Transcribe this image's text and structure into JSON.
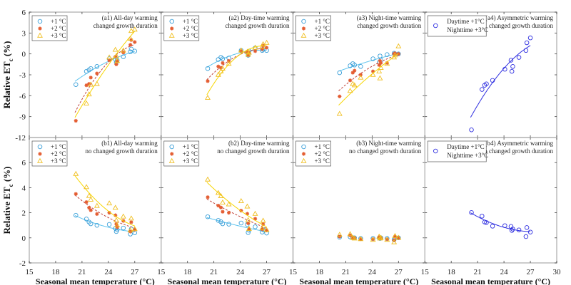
{
  "chart_data": {
    "type": "scatter",
    "x_label": "Seasonal mean temperature (°C)",
    "y_label": "Relative ET",
    "y_label_sub": "c",
    "y_label_unit": " (%)",
    "x_range": [
      15,
      30
    ],
    "x_ticks": [
      15,
      18,
      21,
      24,
      27,
      30
    ],
    "rows": [
      {
        "y_range": [
          -12,
          6
        ],
        "y_ticks": [
          -12,
          -9,
          -6,
          -3,
          0,
          3,
          6
        ]
      },
      {
        "y_range": [
          -2,
          8
        ],
        "y_ticks": [
          -2,
          0,
          2,
          4,
          6
        ]
      }
    ],
    "colors": {
      "plus1": "#3b9fd8",
      "plus1_line": "#5cc3ee",
      "plus2": "#e45d32",
      "plus2_line": "#c0443c",
      "plus3": "#f0be1e",
      "plus3_line": "#f7d600",
      "asym": "#2f2fe0"
    },
    "x": [
      20.3,
      21.5,
      21.8,
      22.0,
      22.7,
      24.1,
      24.8,
      24.9,
      25.0,
      25.7,
      26.5,
      26.6,
      27.0
    ],
    "panels": [
      {
        "id": "a1",
        "row": 0,
        "title1": "(a1) All-day warming",
        "title2": "changed growth duration",
        "fit": true,
        "series": [
          {
            "name": "+1 °C",
            "marker": "circle",
            "y": [
              -4.4,
              -2.5,
              -2.3,
              -2.1,
              -1.8,
              -0.7,
              -0.8,
              -1.2,
              -0.9,
              -0.4,
              0.3,
              0.7,
              0.4
            ]
          },
          {
            "name": "+2 °C",
            "marker": "star",
            "y": [
              -9.6,
              -4.5,
              -4.3,
              -3.4,
              -2.8,
              -0.9,
              -0.4,
              -1.5,
              -1.0,
              0.2,
              1.3,
              2.0,
              1.7
            ]
          },
          {
            "name": "+3 °C",
            "marker": "triangle",
            "y": [
              null,
              -7.1,
              -5.8,
              -4.4,
              -4.3,
              -0.5,
              0.6,
              -0.3,
              -1.0,
              0.5,
              2.2,
              3.3,
              3.5
            ]
          }
        ]
      },
      {
        "id": "a2",
        "row": 0,
        "title1": "(a2) Day-time warming",
        "title2": "changed growth duration",
        "fit": true,
        "series": [
          {
            "name": "+1 °C",
            "marker": "circle",
            "y": [
              -2.1,
              -0.8,
              -0.5,
              -0.7,
              -0.6,
              0.5,
              0.2,
              -0.2,
              0.4,
              0.85,
              0.5,
              0.65,
              0.5
            ]
          },
          {
            "name": "+2 °C",
            "marker": "star",
            "y": [
              -3.9,
              -1.8,
              -2.0,
              -1.3,
              -1.0,
              0.4,
              0.3,
              -0.2,
              0.2,
              0.4,
              0.7,
              1.2,
              0.9
            ]
          },
          {
            "name": "+3 °C",
            "marker": "triangle",
            "y": [
              -6.3,
              -3.0,
              -2.5,
              -2.1,
              -1.4,
              0.5,
              0.3,
              -0.1,
              0.2,
              0.9,
              1.0,
              1.4,
              1.6
            ]
          }
        ]
      },
      {
        "id": "a3",
        "row": 0,
        "title1": "(a3) Night-time warming",
        "title2": "changed growth duration",
        "fit": true,
        "series": [
          {
            "name": "+1 °C",
            "marker": "circle",
            "y": [
              -2.7,
              -1.7,
              -1.4,
              -1.6,
              -1.8,
              -0.7,
              -1.2,
              -0.3,
              -0.9,
              -0.1,
              0.1,
              0.0,
              0.0
            ]
          },
          {
            "name": "+2 °C",
            "marker": "star",
            "y": [
              -6.1,
              -3.8,
              -2.7,
              -2.4,
              -3.0,
              -2.5,
              -1.6,
              -1.0,
              -1.3,
              -1.3,
              0.0,
              0.1,
              0.0
            ]
          },
          {
            "name": "+3 °C",
            "marker": "triangle",
            "y": [
              -8.6,
              -5.3,
              -4.3,
              -4.5,
              -3.4,
              -3.0,
              -2.5,
              -3.5,
              -2.0,
              -1.4,
              -0.5,
              -0.2,
              1.1
            ]
          }
        ]
      },
      {
        "id": "a4",
        "row": 0,
        "title1": "(a4) Asymmetric warming",
        "title2": "changed growth duration",
        "fit": true,
        "legend_lines": [
          "Daytime +1°C",
          "Nighttime +3°C"
        ],
        "series": [
          {
            "name": "Daytime +1°C / Nighttime +3°C",
            "marker": "asym",
            "y": [
              -10.9,
              -5.1,
              -4.5,
              -4.3,
              -3.8,
              -2.2,
              -0.9,
              -2.5,
              -1.8,
              -0.5,
              0.5,
              1.6,
              2.3
            ]
          }
        ]
      },
      {
        "id": "b1",
        "row": 1,
        "title1": "(b1) All-day warming",
        "title2": "no changed growth duration",
        "fit": true,
        "series": [
          {
            "name": "+1 °C",
            "marker": "circle",
            "y": [
              1.8,
              1.5,
              1.26,
              1.12,
              1.0,
              1.07,
              0.75,
              0.5,
              0.65,
              0.78,
              0.3,
              0.7,
              0.4
            ]
          },
          {
            "name": "+2 °C",
            "marker": "star",
            "y": [
              3.5,
              2.85,
              2.4,
              2.2,
              1.9,
              2.0,
              1.8,
              1.1,
              0.85,
              1.35,
              0.5,
              1.25,
              0.65
            ]
          },
          {
            "name": "+3 °C",
            "marker": "triangle",
            "y": [
              5.1,
              4.05,
              3.35,
              3.05,
              2.55,
              2.75,
              2.4,
              1.4,
              1.0,
              1.7,
              0.6,
              1.55,
              0.7
            ]
          }
        ]
      },
      {
        "id": "b2",
        "row": 1,
        "title1": "(b2) Day-time warming",
        "title2": "no changed growth duration",
        "fit": true,
        "series": [
          {
            "name": "+1 °C",
            "marker": "circle",
            "y": [
              1.68,
              1.39,
              1.28,
              1.12,
              1.09,
              1.18,
              1.07,
              0.42,
              0.6,
              0.88,
              0.46,
              0.65,
              0.38
            ]
          },
          {
            "name": "+2 °C",
            "marker": "star",
            "y": [
              3.24,
              2.57,
              2.42,
              2.08,
              2.0,
              2.17,
              1.92,
              1.16,
              0.69,
              1.52,
              0.69,
              1.1,
              0.59
            ]
          },
          {
            "name": "+3 °C",
            "marker": "triangle",
            "y": [
              4.65,
              3.58,
              3.33,
              2.82,
              2.67,
              2.93,
              2.5,
              1.41,
              0.72,
              1.92,
              0.76,
              1.37,
              0.63
            ]
          }
        ]
      },
      {
        "id": "b3",
        "row": 1,
        "title1": "(b3) Night-time warming",
        "title2": "no changed growth duration",
        "fit": false,
        "series": [
          {
            "name": "+1 °C",
            "marker": "circle",
            "y": [
              0.05,
              0.08,
              0.0,
              0.0,
              -0.05,
              -0.05,
              0.0,
              -0.05,
              0.0,
              -0.05,
              -0.15,
              0.0,
              0.0
            ]
          },
          {
            "name": "+2 °C",
            "marker": "star",
            "y": [
              0.1,
              0.2,
              0.0,
              0.0,
              -0.1,
              -0.1,
              0.05,
              -0.05,
              0.0,
              -0.1,
              -0.2,
              0.1,
              0.0
            ]
          },
          {
            "name": "+3 °C",
            "marker": "triangle",
            "y": [
              0.25,
              0.3,
              0.0,
              -0.05,
              -0.1,
              -0.15,
              0.1,
              -0.05,
              0.0,
              -0.15,
              -0.35,
              0.15,
              0.0
            ]
          }
        ]
      },
      {
        "id": "b4",
        "row": 1,
        "title1": "(b4) Asymmetric warming",
        "title2": "no changed growth duration",
        "fit": true,
        "legend_lines": [
          "Daytime +1°C",
          "Nighttime +3°C"
        ],
        "series": [
          {
            "name": "Daytime +1°C / Nighttime +3°C",
            "marker": "asym",
            "y": [
              2.02,
              1.73,
              1.26,
              1.22,
              0.93,
              0.97,
              0.91,
              0.59,
              0.7,
              0.63,
              0.1,
              0.82,
              0.46
            ]
          }
        ]
      }
    ]
  }
}
